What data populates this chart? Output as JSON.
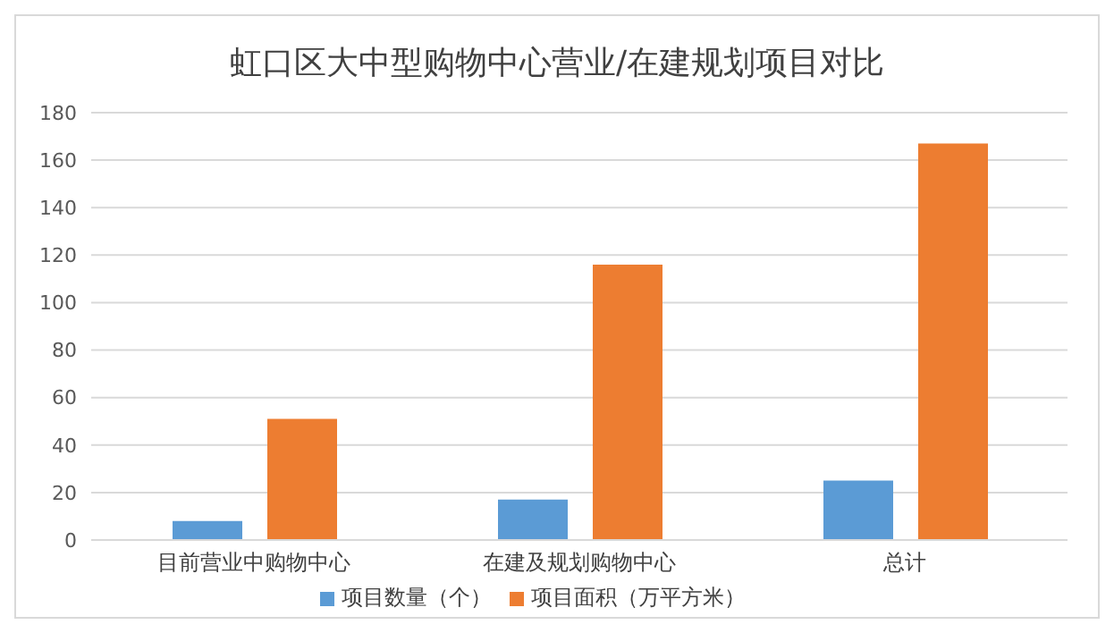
{
  "chart_data": {
    "type": "bar",
    "title": "虹口区大中型购物中心营业/在建规划项目对比",
    "categories": [
      "目前营业中购物中心",
      "在建及规划购物中心",
      "总计"
    ],
    "series": [
      {
        "name": "项目数量（个）",
        "color": "#5b9bd5",
        "values": [
          8,
          17,
          25
        ]
      },
      {
        "name": "项目面积（万平方米）",
        "color": "#ed7d31",
        "values": [
          51,
          116,
          167
        ]
      }
    ],
    "ylim": [
      0,
      180
    ],
    "yticks": [
      0,
      20,
      40,
      60,
      80,
      100,
      120,
      140,
      160,
      180
    ],
    "grid": "y",
    "legend": "bottom"
  }
}
